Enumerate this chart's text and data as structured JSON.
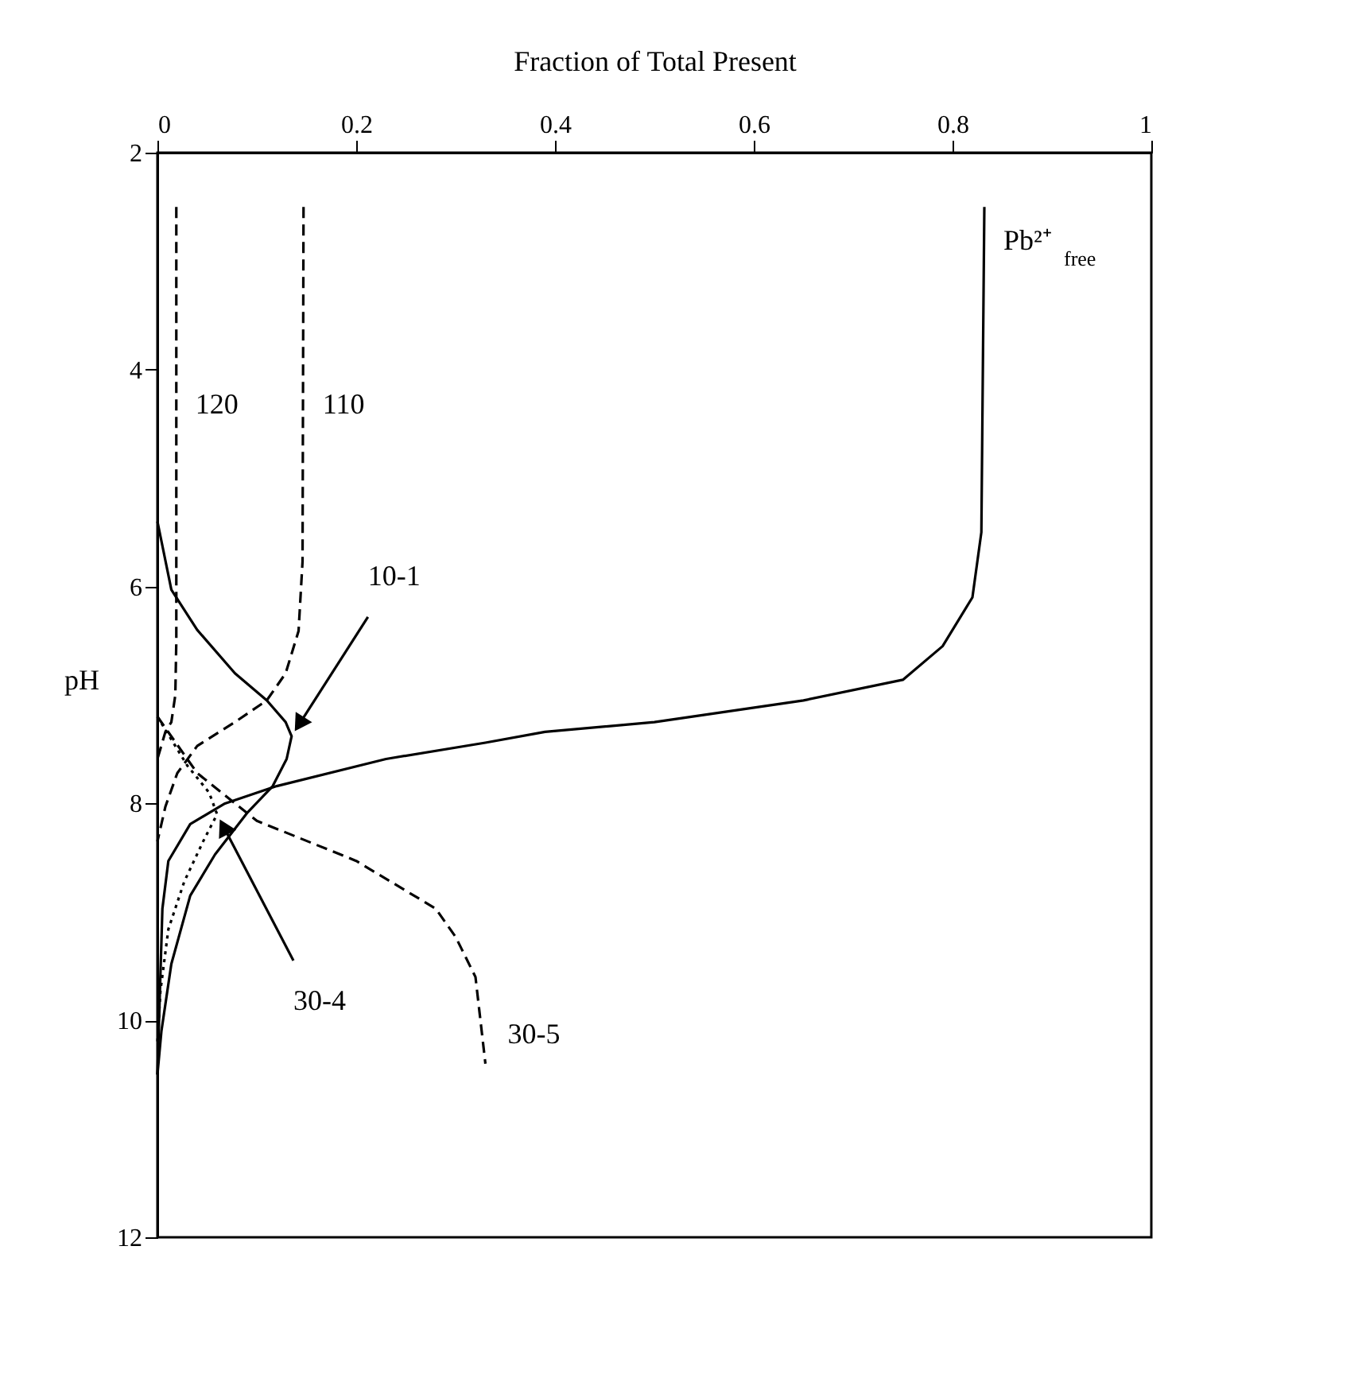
{
  "chart_data": {
    "type": "line",
    "orientation": "horizontal",
    "xlabel": "Fraction of Total Present",
    "ylabel": "pH",
    "xlim": [
      0,
      1
    ],
    "xticks": [
      0,
      0.2,
      0.4,
      0.6,
      0.8,
      1
    ],
    "ylim": [
      12,
      2
    ],
    "yticks": [
      2,
      4,
      6,
      8,
      10,
      12
    ],
    "grid": false,
    "marker": "none",
    "series": [
      {
        "name": "Pb²⁺$_{free}$",
        "color": "#000000",
        "line_style": "solid",
        "x": [
          2.5,
          5.5,
          6.1,
          6.55,
          6.86,
          7.05,
          7.25,
          7.34,
          7.44,
          7.59,
          7.84,
          8.0,
          8.19,
          8.53,
          8.97,
          10.5
        ],
        "values": [
          0.832,
          0.829,
          0.82,
          0.79,
          0.75,
          0.65,
          0.5,
          0.39,
          0.33,
          0.23,
          0.12,
          0.068,
          0.033,
          0.011,
          0.005,
          0.0
        ]
      },
      {
        "name": "10-1",
        "color": "#000000",
        "line_style": "solid",
        "x": [
          5.4,
          6.03,
          6.4,
          6.8,
          7.05,
          7.25,
          7.38,
          7.59,
          7.84,
          8.09,
          8.47,
          8.85,
          9.48,
          10.1,
          10.5
        ],
        "values": [
          0.0,
          0.014,
          0.04,
          0.078,
          0.11,
          0.129,
          0.135,
          0.13,
          0.116,
          0.09,
          0.058,
          0.033,
          0.014,
          0.004,
          0.0
        ]
      },
      {
        "name": "110",
        "color": "#000000",
        "line_style": "dashed",
        "x": [
          2.5,
          5.77,
          6.41,
          6.8,
          7.05,
          7.25,
          7.47,
          7.72,
          8.03,
          8.35
        ],
        "values": [
          0.147,
          0.146,
          0.142,
          0.129,
          0.11,
          0.078,
          0.04,
          0.02,
          0.008,
          0.0
        ]
      },
      {
        "name": "120",
        "color": "#000000",
        "line_style": "dashed",
        "x": [
          2.5,
          6.5,
          7.0,
          7.25,
          7.34,
          7.59
        ],
        "values": [
          0.019,
          0.019,
          0.018,
          0.014,
          0.008,
          0.0
        ]
      },
      {
        "name": "30-4",
        "color": "#000000",
        "line_style": "dotted",
        "x": [
          7.2,
          7.65,
          7.9,
          8.1,
          8.35,
          8.72,
          9.16,
          9.73,
          10.2
        ],
        "values": [
          0.0,
          0.03,
          0.052,
          0.06,
          0.046,
          0.027,
          0.011,
          0.003,
          0.0
        ]
      },
      {
        "name": "30-5",
        "color": "#000000",
        "line_style": "dashed",
        "x": [
          7.2,
          7.72,
          8.16,
          8.53,
          8.97,
          9.23,
          9.6,
          10.4
        ],
        "values": [
          0.0,
          0.04,
          0.1,
          0.2,
          0.28,
          0.3,
          0.32,
          0.33
        ]
      }
    ]
  }
}
